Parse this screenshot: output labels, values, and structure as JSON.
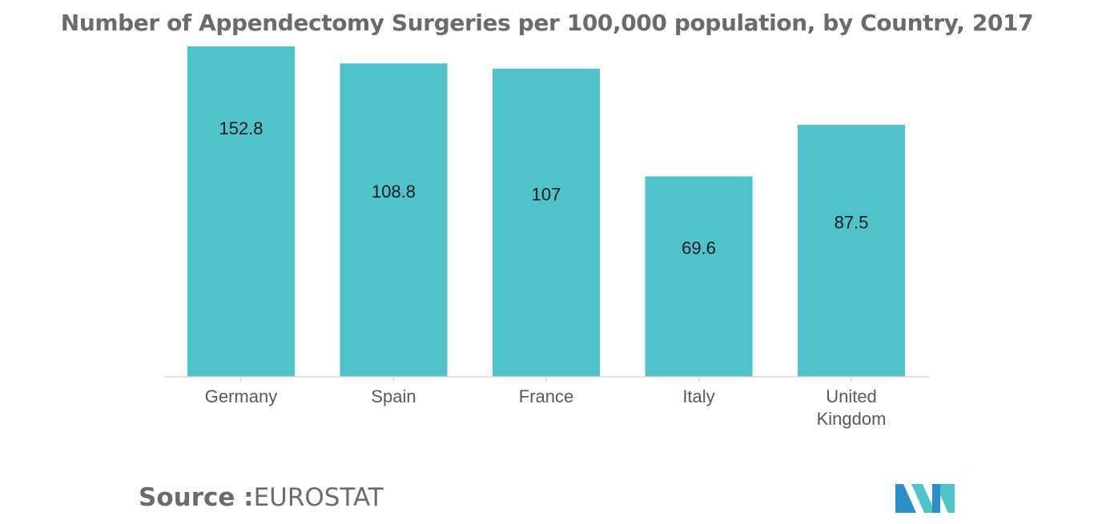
{
  "chart_data": {
    "type": "bar",
    "title": "Number of Appendectomy Surgeries per 100,000 population, by Country, 2017",
    "xlabel": "",
    "ylabel": "",
    "categories": [
      [
        "Germany"
      ],
      [
        "Spain"
      ],
      [
        "France"
      ],
      [
        "Italy"
      ],
      [
        "United",
        "Kingdom"
      ]
    ],
    "values": [
      152.8,
      108.8,
      107,
      69.6,
      87.5
    ],
    "value_labels": [
      "152.8",
      "108.8",
      "107",
      "69.6",
      "87.5"
    ],
    "bar_color": "#4fc3c9",
    "axis_color": "#d9d9d9",
    "grid": false,
    "legend": "none"
  },
  "source": {
    "label": "Source :",
    "value": "EUROSTAT"
  },
  "logo": {
    "colors": [
      "#2a8fc9",
      "#4fc3c9"
    ]
  }
}
